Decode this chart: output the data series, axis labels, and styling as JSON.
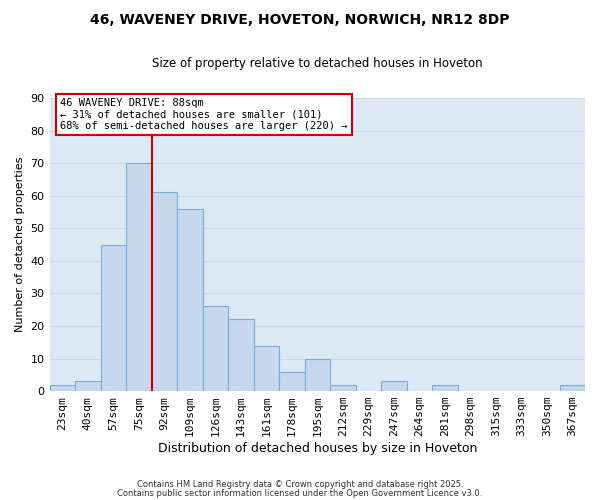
{
  "title_line1": "46, WAVENEY DRIVE, HOVETON, NORWICH, NR12 8DP",
  "title_line2": "Size of property relative to detached houses in Hoveton",
  "xlabel": "Distribution of detached houses by size in Hoveton",
  "ylabel": "Number of detached properties",
  "bar_labels": [
    "23sqm",
    "40sqm",
    "57sqm",
    "75sqm",
    "92sqm",
    "109sqm",
    "126sqm",
    "143sqm",
    "161sqm",
    "178sqm",
    "195sqm",
    "212sqm",
    "229sqm",
    "247sqm",
    "264sqm",
    "281sqm",
    "298sqm",
    "315sqm",
    "333sqm",
    "350sqm",
    "367sqm"
  ],
  "bar_values": [
    2,
    3,
    45,
    70,
    61,
    56,
    26,
    22,
    14,
    6,
    10,
    2,
    0,
    3,
    0,
    2,
    0,
    0,
    0,
    0,
    2
  ],
  "bar_color": "#c5d8ee",
  "bar_edge_color": "#7aacd4",
  "bar_width": 1.0,
  "vline_x_index": 3,
  "vline_color": "#cc0000",
  "ylim": [
    0,
    90
  ],
  "yticks": [
    0,
    10,
    20,
    30,
    40,
    50,
    60,
    70,
    80,
    90
  ],
  "annotation_line1": "46 WAVENEY DRIVE: 88sqm",
  "annotation_line2": "← 31% of detached houses are smaller (101)",
  "annotation_line3": "68% of semi-detached houses are larger (220) →",
  "grid_color": "#c8d8e8",
  "bg_color": "#dce9f5",
  "footer_line1": "Contains HM Land Registry data © Crown copyright and database right 2025.",
  "footer_line2": "Contains public sector information licensed under the Open Government Licence v3.0."
}
